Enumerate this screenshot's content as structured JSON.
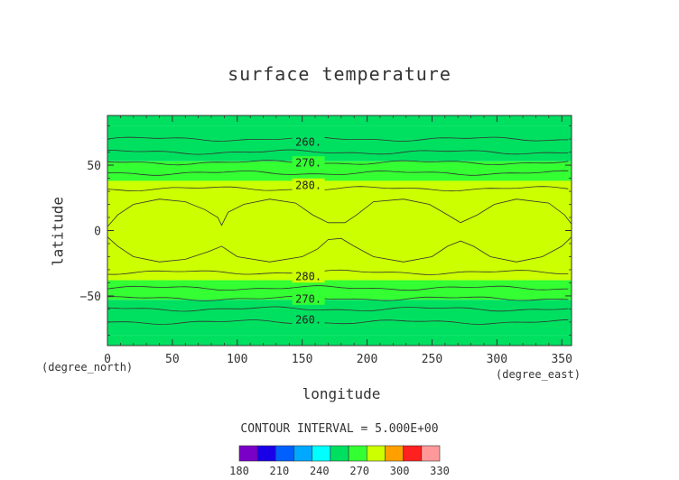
{
  "chart_data": {
    "type": "heatmap",
    "title": "surface temperature",
    "xlabel": "longitude",
    "ylabel": "latitude",
    "x_unit": "(degree_east)",
    "y_unit": "(degree_north)",
    "xlim": [
      0,
      357.5
    ],
    "ylim": [
      -88,
      88
    ],
    "x_ticks": [
      0,
      50,
      100,
      150,
      200,
      250,
      300,
      350
    ],
    "y_ticks": [
      -50,
      0,
      50
    ],
    "contour_interval_text": "CONTOUR INTERVAL = 5.000E+00",
    "contour_labels": [
      {
        "text": "260.",
        "lon": 127,
        "lat": 68
      },
      {
        "text": "270.",
        "lon": 127,
        "lat": 52
      },
      {
        "text": "280.",
        "lon": 127,
        "lat": 35
      },
      {
        "text": "280.",
        "lon": 127,
        "lat": -35
      },
      {
        "text": "270.",
        "lon": 127,
        "lat": -52
      },
      {
        "text": "260.",
        "lon": 127,
        "lat": -68
      }
    ],
    "bands": [
      {
        "lat_min": 80,
        "lat_max": 88,
        "level": 265
      },
      {
        "lat_min": 53,
        "lat_max": 80,
        "level": 265
      },
      {
        "lat_min": 38,
        "lat_max": 53,
        "level": 275
      },
      {
        "lat_min": -38,
        "lat_max": 38,
        "level": 285
      },
      {
        "lat_min": -53,
        "lat_max": -38,
        "level": 275
      },
      {
        "lat_min": -80,
        "lat_max": -53,
        "level": 265
      },
      {
        "lat_min": -88,
        "lat_max": -80,
        "level": 265
      }
    ],
    "warm_region_level": 295,
    "warm_region_outline": [
      [
        0,
        3
      ],
      [
        8,
        12
      ],
      [
        20,
        20
      ],
      [
        40,
        24
      ],
      [
        60,
        22
      ],
      [
        75,
        16
      ],
      [
        85,
        10
      ],
      [
        88,
        4
      ],
      [
        93,
        14
      ],
      [
        105,
        20
      ],
      [
        125,
        24
      ],
      [
        145,
        21
      ],
      [
        158,
        12
      ],
      [
        170,
        6
      ],
      [
        183,
        6
      ],
      [
        192,
        12
      ],
      [
        205,
        22
      ],
      [
        228,
        24
      ],
      [
        248,
        20
      ],
      [
        262,
        12
      ],
      [
        272,
        6
      ],
      [
        285,
        12
      ],
      [
        298,
        20
      ],
      [
        315,
        24
      ],
      [
        340,
        21
      ],
      [
        352,
        12
      ],
      [
        357.5,
        5
      ],
      [
        357.5,
        -5
      ],
      [
        350,
        -12
      ],
      [
        335,
        -20
      ],
      [
        315,
        -24
      ],
      [
        295,
        -20
      ],
      [
        282,
        -12
      ],
      [
        272,
        -8
      ],
      [
        262,
        -12
      ],
      [
        250,
        -20
      ],
      [
        228,
        -24
      ],
      [
        205,
        -20
      ],
      [
        190,
        -12
      ],
      [
        180,
        -6
      ],
      [
        170,
        -7
      ],
      [
        162,
        -14
      ],
      [
        150,
        -20
      ],
      [
        125,
        -24
      ],
      [
        100,
        -20
      ],
      [
        88,
        -12
      ],
      [
        78,
        -16
      ],
      [
        60,
        -22
      ],
      [
        40,
        -24
      ],
      [
        20,
        -20
      ],
      [
        8,
        -12
      ],
      [
        0,
        -5
      ]
    ],
    "contour_lines": [
      {
        "level": 260,
        "lat": 70
      },
      {
        "level": 265,
        "lat": 60
      },
      {
        "level": 270,
        "lat": 52
      },
      {
        "level": 275,
        "lat": 44
      },
      {
        "level": 280,
        "lat": 32
      },
      {
        "level": 280,
        "lat": -32
      },
      {
        "level": 275,
        "lat": -44
      },
      {
        "level": 270,
        "lat": -52
      },
      {
        "level": 265,
        "lat": -60
      },
      {
        "level": 260,
        "lat": -70
      }
    ],
    "colorbar": {
      "levels": [
        180,
        195,
        210,
        225,
        240,
        255,
        270,
        285,
        300,
        315,
        330
      ],
      "colors": [
        "#7a00c8",
        "#1a00e6",
        "#0060ff",
        "#00a8ff",
        "#00ffff",
        "#00e060",
        "#33ff33",
        "#ccff00",
        "#ffa000",
        "#ff2020",
        "#ff9999"
      ],
      "tick_labels": [
        "180",
        "210",
        "240",
        "270",
        "300",
        "330"
      ]
    }
  }
}
